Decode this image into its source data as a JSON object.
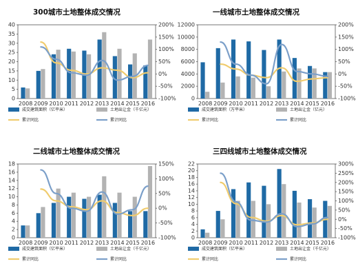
{
  "chart_data": [
    {
      "type": "bar",
      "title": "300城市土地整体成交情况",
      "categories": [
        "2008",
        "2009",
        "2010",
        "2011",
        "2012",
        "2013",
        "2014",
        "2015",
        "2016"
      ],
      "y_ticks": [
        "0",
        "5",
        "10",
        "15",
        "20",
        "25",
        "30",
        "35",
        "40"
      ],
      "y2_ticks": [
        "-100%",
        "-50%",
        "0%",
        "50%",
        "100%",
        "150%",
        "200%"
      ],
      "ylim": [
        0,
        40
      ],
      "y2lim": [
        -100,
        200
      ],
      "series": [
        {
          "name": "成交建筑面积（亿平米）",
          "kind": "bar",
          "color": "#1f6aa5",
          "values": [
            6,
            15,
            24,
            27,
            26,
            32,
            23,
            18.5,
            18
          ]
        },
        {
          "name": "土地出让金（千亿元）",
          "kind": "bar",
          "color": "#b3b3b3",
          "values": [
            5.5,
            16,
            26.5,
            25.5,
            24,
            36,
            27,
            24.5,
            32
          ]
        },
        {
          "name": "累计同比",
          "kind": "line",
          "color": "#f0cc6e",
          "values": [
            null,
            130,
            45,
            15,
            0,
            25,
            15,
            -15,
            5
          ]
        },
        {
          "name": "累计同比",
          "kind": "line",
          "color": "#7b9fc9",
          "values": [
            null,
            110,
            60,
            5,
            -5,
            55,
            -25,
            -10,
            35
          ]
        }
      ]
    },
    {
      "type": "bar",
      "title": "一线城市土地整体成交情况",
      "categories": [
        "2008",
        "2009",
        "2010",
        "2011",
        "2012",
        "2013",
        "2014",
        "2015",
        "2016"
      ],
      "y_ticks": [
        "0",
        "2000",
        "4000",
        "6000",
        "8000",
        "10000",
        "12000"
      ],
      "y2_ticks": [
        "-100%",
        "-50%",
        "0%",
        "50%",
        "100%",
        "150%",
        "200%"
      ],
      "ylim": [
        0,
        12000
      ],
      "y2lim": [
        -100,
        200
      ],
      "series": [
        {
          "name": "成交建筑面积（万平米）",
          "kind": "bar",
          "color": "#1f6aa5",
          "values": [
            5900,
            8200,
            9600,
            9300,
            7900,
            9600,
            6600,
            5300,
            4300
          ]
        },
        {
          "name": "土地出让金（亿元）",
          "kind": "bar",
          "color": "#b3b3b3",
          "values": [
            1100,
            2600,
            3600,
            3400,
            2000,
            4400,
            4900,
            4900,
            4300
          ]
        },
        {
          "name": "累计同比",
          "kind": "line",
          "color": "#f0cc6e",
          "values": [
            null,
            40,
            20,
            -5,
            -15,
            25,
            -30,
            -20,
            -15
          ]
        },
        {
          "name": "累计同比",
          "kind": "line",
          "color": "#7b9fc9",
          "values": [
            null,
            130,
            40,
            -5,
            -40,
            120,
            10,
            0,
            -10
          ]
        }
      ]
    },
    {
      "type": "bar",
      "title": "二线城市土地整体成交情况",
      "categories": [
        "2008",
        "2009",
        "2010",
        "2011",
        "2012",
        "2013",
        "2014",
        "2015",
        "2016"
      ],
      "y_ticks": [
        "0",
        "2",
        "4",
        "6",
        "8",
        "10",
        "12",
        "14",
        "16",
        "18"
      ],
      "y2_ticks": [
        "-100%",
        "-50%",
        "0%",
        "50%",
        "100%",
        "150%"
      ],
      "ylim": [
        0,
        18
      ],
      "y2lim": [
        -100,
        150
      ],
      "series": [
        {
          "name": "成交建筑面积（亿平米）",
          "kind": "bar",
          "color": "#1f6aa5",
          "values": [
            3,
            6,
            8.5,
            10,
            9.5,
            10.5,
            8.5,
            6.5,
            6.5
          ]
        },
        {
          "name": "土地出让金（千亿元）",
          "kind": "bar",
          "color": "#b3b3b3",
          "values": [
            3,
            7.5,
            12,
            11,
            10,
            15,
            11,
            10,
            17.5
          ]
        },
        {
          "name": "累计同比",
          "kind": "line",
          "color": "#f0cc6e",
          "values": [
            null,
            65,
            25,
            5,
            -5,
            25,
            -15,
            -25,
            0
          ]
        },
        {
          "name": "累计同比",
          "kind": "line",
          "color": "#7b9fc9",
          "values": [
            null,
            130,
            50,
            0,
            -10,
            55,
            -20,
            -5,
            75
          ]
        }
      ]
    },
    {
      "type": "bar",
      "title": "三四线城市土地整体成交情况",
      "categories": [
        "2008",
        "2009",
        "2010",
        "2011",
        "2012",
        "2013",
        "2014",
        "2015",
        "2016"
      ],
      "y_ticks": [
        "0",
        "2",
        "4",
        "6",
        "8",
        "10",
        "12",
        "14",
        "16",
        "18",
        "20",
        "22"
      ],
      "y2_ticks": [
        "-100%",
        "-50%",
        "0%",
        "50%",
        "100%",
        "150%",
        "200%",
        "250%",
        "300%"
      ],
      "ylim": [
        0,
        22
      ],
      "y2lim": [
        -100,
        300
      ],
      "series": [
        {
          "name": "成交建筑面积（亿平米）",
          "kind": "bar",
          "color": "#1f6aa5",
          "values": [
            2.5,
            8,
            14.5,
            16.5,
            15.5,
            20.5,
            14,
            11.5,
            11
          ]
        },
        {
          "name": "土地出让金（千亿元）",
          "kind": "bar",
          "color": "#b3b3b3",
          "values": [
            1.5,
            5.5,
            11,
            11,
            10,
            16,
            10.5,
            9,
            9.5
          ]
        },
        {
          "name": "累计同比",
          "kind": "line",
          "color": "#f0cc6e",
          "values": [
            null,
            200,
            85,
            10,
            -10,
            20,
            -30,
            -20,
            0
          ]
        },
        {
          "name": "累计同比",
          "kind": "line",
          "color": "#7b9fc9",
          "values": [
            null,
            250,
            95,
            -5,
            -15,
            30,
            -40,
            -25,
            10
          ]
        }
      ]
    }
  ]
}
